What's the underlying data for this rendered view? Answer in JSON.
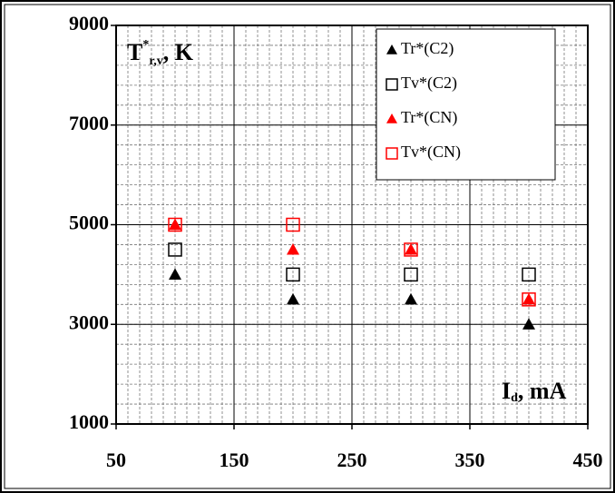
{
  "chart_data": {
    "type": "scatter",
    "y_label": {
      "main": "T",
      "sup": "*",
      "sub": "r,v",
      "unit": ", K"
    },
    "x_label": {
      "main": "I",
      "sub": "d",
      "unit": ", mA"
    },
    "xlim": [
      50,
      450
    ],
    "xticks": [
      50,
      150,
      250,
      350,
      450
    ],
    "ylim": [
      1000,
      9000
    ],
    "yticks": [
      1000,
      3000,
      5000,
      7000,
      9000
    ],
    "grid": true,
    "minor_grid_step": [
      10,
      400
    ],
    "legend": "top-right",
    "x": [
      100,
      200,
      300,
      400
    ],
    "series": [
      {
        "name": "Tr*(C2)",
        "color": "#000000",
        "marker": "triangle",
        "values": [
          4000,
          3500,
          3500,
          3000
        ]
      },
      {
        "name": "Tv*(C2)",
        "color": "#000000",
        "marker": "square",
        "values": [
          4500,
          4000,
          4000,
          4000
        ]
      },
      {
        "name": "Tr*(CN)",
        "color": "#ff0000",
        "marker": "triangle",
        "values": [
          5000,
          4500,
          4500,
          3500
        ]
      },
      {
        "name": "Tv*(CN)",
        "color": "#ff0000",
        "marker": "square",
        "values": [
          5000,
          5000,
          4500,
          3500
        ]
      }
    ]
  }
}
